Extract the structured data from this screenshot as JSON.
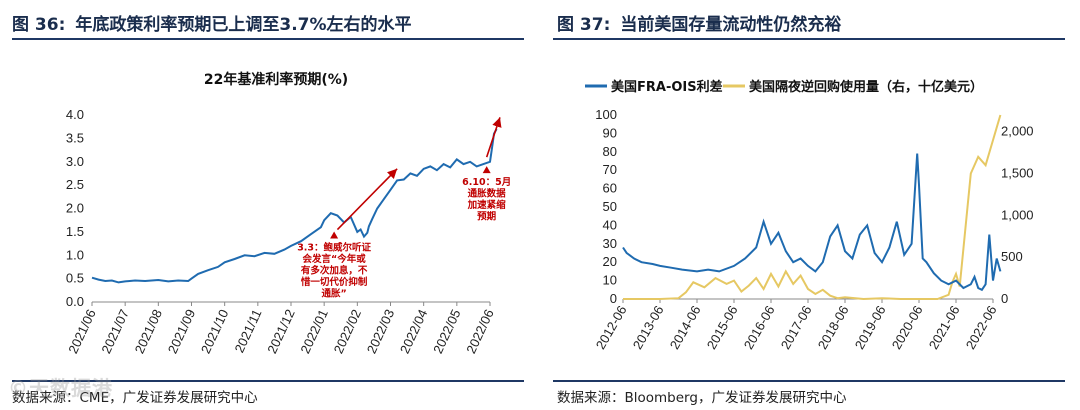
{
  "left": {
    "title_num": "图 36:",
    "title_text": "年底政策利率预期已上调至3.7%左右的水平",
    "source": "数据来源：CME，广发证券发展研究中心"
  },
  "right": {
    "title_num": "图 37:",
    "title_text": "当前美国存量流动性仍然充裕",
    "source": "数据来源：Bloomberg，广发证券发展研究中心"
  },
  "watermark": "©天数据港",
  "colors": {
    "title_navy": "#1f3864",
    "line_blue": "#1f6bb0",
    "line_gold": "#e6c863",
    "annotation_red": "#c00000"
  },
  "chart_data": [
    {
      "id": "rate-expectation",
      "type": "line",
      "title": "22年基准利率预期(%)",
      "xlabel": "",
      "ylabel": "",
      "ylim": [
        0,
        4.0
      ],
      "yticks": [
        "0.0",
        "0.5",
        "1.0",
        "1.5",
        "2.0",
        "2.5",
        "3.0",
        "3.5",
        "4.0"
      ],
      "categories": [
        "2021/06",
        "2021/07",
        "2021/08",
        "2021/09",
        "2021/10",
        "2021/11",
        "2021/12",
        "2022/01",
        "2022/02",
        "2022/03",
        "2022/04",
        "2022/05",
        "2022/06"
      ],
      "series": [
        {
          "name": "22年基准利率预期",
          "color": "#1f6bb0",
          "x": [
            0,
            0.2,
            0.4,
            0.6,
            0.8,
            1.0,
            1.3,
            1.6,
            2.0,
            2.3,
            2.6,
            2.9,
            3.0,
            3.2,
            3.5,
            3.8,
            4.0,
            4.3,
            4.6,
            4.9,
            5.2,
            5.5,
            5.8,
            6.0,
            6.3,
            6.6,
            6.9,
            7.0,
            7.2,
            7.4,
            7.6,
            7.8,
            8.0,
            8.1,
            8.2,
            8.3,
            8.35,
            8.45,
            8.6,
            8.8,
            9.0,
            9.2,
            9.4,
            9.6,
            9.8,
            10.0,
            10.2,
            10.4,
            10.6,
            10.8,
            11.0,
            11.2,
            11.4,
            11.6,
            11.8,
            12.0,
            12.05,
            12.12,
            12.2
          ],
          "values": [
            0.52,
            0.48,
            0.45,
            0.46,
            0.42,
            0.44,
            0.46,
            0.45,
            0.47,
            0.44,
            0.46,
            0.45,
            0.5,
            0.6,
            0.68,
            0.75,
            0.85,
            0.92,
            1.0,
            0.98,
            1.05,
            1.03,
            1.12,
            1.2,
            1.3,
            1.45,
            1.6,
            1.75,
            1.9,
            1.85,
            1.7,
            1.82,
            1.5,
            1.55,
            1.4,
            1.48,
            1.62,
            1.78,
            2.0,
            2.2,
            2.4,
            2.6,
            2.62,
            2.75,
            2.7,
            2.85,
            2.9,
            2.82,
            2.95,
            2.88,
            3.05,
            2.95,
            3.0,
            2.9,
            2.95,
            3.0,
            3.25,
            3.6,
            3.7
          ]
        }
      ],
      "annotations": [
        {
          "x": 7.3,
          "y": 1.4,
          "text": "3.3：鲍威尔听证会发言“今年或有多次加息，不惜一切代价抑制通胀”",
          "lines": [
            "3.3：鲍威尔听证",
            "会发言“今年或",
            "有多次加息，不",
            "惜一切代价抑制",
            "通胀”"
          ]
        },
        {
          "x": 11.9,
          "y": 2.8,
          "text": "6.10：5月通胀数据加速紧缩预期",
          "lines": [
            "6.10：5月",
            "通胀数据",
            "加速紧缩",
            "预期"
          ]
        }
      ],
      "trend_arrows": [
        {
          "from": [
            7.4,
            1.55
          ],
          "to": [
            9.2,
            2.85
          ]
        },
        {
          "from": [
            11.9,
            3.1
          ],
          "to": [
            12.3,
            3.95
          ]
        }
      ]
    },
    {
      "id": "us-liquidity",
      "type": "line",
      "title": "",
      "categories": [
        "2012-06",
        "2013-06",
        "2014-06",
        "2015-06",
        "2016-06",
        "2017-06",
        "2018-06",
        "2019-06",
        "2020-06",
        "2021-06",
        "2022-06"
      ],
      "ylim_left": [
        0,
        100
      ],
      "yticks_left": [
        "0",
        "10",
        "20",
        "30",
        "40",
        "50",
        "60",
        "70",
        "80",
        "90",
        "100"
      ],
      "ylim_right": [
        0,
        2200
      ],
      "yticks_right": [
        {
          "v": 0,
          "label": "0"
        },
        {
          "v": 500,
          "label": "500"
        },
        {
          "v": 1000,
          "label": "1,000"
        },
        {
          "v": 1500,
          "label": "1,500"
        },
        {
          "v": 2000,
          "label": "2,000"
        }
      ],
      "legend": [
        "美国FRA-OIS利差",
        "美国隔夜逆回购使用量（右，十亿美元）"
      ],
      "series": [
        {
          "name": "美国FRA-OIS利差",
          "axis": "left",
          "color": "#1f6bb0",
          "x": [
            0,
            0.1,
            0.3,
            0.5,
            0.8,
            1.0,
            1.3,
            1.6,
            2.0,
            2.3,
            2.6,
            3.0,
            3.3,
            3.6,
            3.8,
            4.0,
            4.2,
            4.4,
            4.6,
            4.8,
            5.0,
            5.2,
            5.4,
            5.6,
            5.8,
            6.0,
            6.2,
            6.4,
            6.6,
            6.8,
            7.0,
            7.2,
            7.4,
            7.6,
            7.8,
            7.95,
            8.0,
            8.1,
            8.2,
            8.4,
            8.6,
            8.8,
            9.0,
            9.2,
            9.4,
            9.5,
            9.6,
            9.7,
            9.8,
            9.9,
            10.0,
            10.1,
            10.2
          ],
          "values": [
            28,
            25,
            22,
            20,
            19,
            18,
            17,
            16,
            15,
            16,
            15,
            18,
            22,
            28,
            42,
            30,
            36,
            26,
            20,
            22,
            18,
            15,
            20,
            34,
            40,
            26,
            22,
            35,
            40,
            25,
            20,
            28,
            42,
            24,
            30,
            79,
            62,
            22,
            20,
            14,
            10,
            8,
            10,
            6,
            8,
            12,
            6,
            5,
            8,
            35,
            10,
            22,
            15
          ]
        },
        {
          "name": "美国隔夜逆回购使用量（右，十亿美元）",
          "axis": "right",
          "color": "#e6c863",
          "x": [
            0,
            1.0,
            1.5,
            1.7,
            1.9,
            2.2,
            2.5,
            2.8,
            3.0,
            3.2,
            3.4,
            3.6,
            3.8,
            4.0,
            4.2,
            4.4,
            4.6,
            4.8,
            5.0,
            5.2,
            5.4,
            5.6,
            5.8,
            6.0,
            6.5,
            7.0,
            7.5,
            8.0,
            8.5,
            8.8,
            8.9,
            9.0,
            9.1,
            9.2,
            9.4,
            9.6,
            9.8,
            10.0,
            10.2
          ],
          "values": [
            0,
            0,
            10,
            80,
            200,
            140,
            250,
            180,
            220,
            90,
            160,
            250,
            120,
            300,
            150,
            330,
            180,
            280,
            120,
            60,
            110,
            40,
            10,
            20,
            0,
            10,
            0,
            0,
            0,
            50,
            200,
            300,
            150,
            600,
            1500,
            1700,
            1600,
            1900,
            2200
          ]
        }
      ]
    }
  ]
}
